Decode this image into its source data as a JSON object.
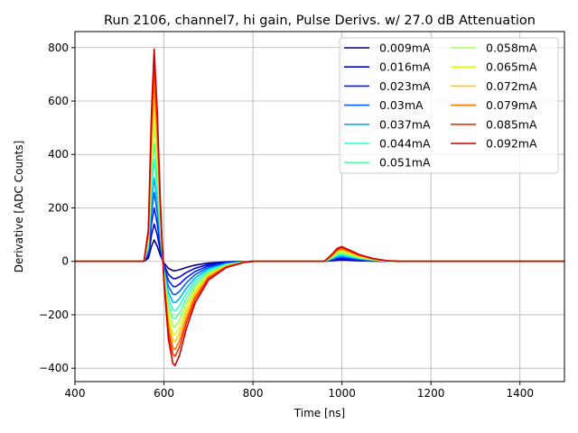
{
  "chart_data": {
    "type": "line",
    "title": "Run 2106, channel7, hi gain, Pulse Derivs. w/ 27.0 dB Attenuation",
    "xlabel": "Time [ns]",
    "ylabel": "Derivative [ADC Counts]",
    "xlim": [
      400,
      1500
    ],
    "ylim": [
      -450,
      860
    ],
    "xticks": [
      400,
      600,
      800,
      1000,
      1200,
      1400
    ],
    "yticks": [
      -400,
      -200,
      0,
      200,
      400,
      600,
      800
    ],
    "grid": true,
    "legend_position": "top-right",
    "legend_columns": 2,
    "pulse_shape": {
      "x": [
        400,
        555,
        565,
        572,
        578,
        585,
        592,
        600,
        610,
        620,
        625,
        635,
        650,
        670,
        700,
        740,
        780,
        800,
        960,
        975,
        990,
        1000,
        1015,
        1040,
        1070,
        1100,
        1130,
        1500
      ],
      "pos": [
        0,
        0,
        0.15,
        0.7,
        1,
        0.7,
        0.3,
        0.05,
        0,
        0,
        0,
        0,
        0,
        0,
        0,
        0,
        0,
        0,
        0,
        0,
        0,
        0,
        0,
        0,
        0,
        0,
        0,
        0
      ],
      "neg": [
        0,
        0,
        0,
        0,
        0,
        0,
        -0.05,
        -0.3,
        -0.75,
        -0.98,
        -1,
        -0.9,
        -0.65,
        -0.4,
        -0.18,
        -0.06,
        -0.01,
        0,
        0,
        0,
        0,
        0,
        0,
        0,
        0,
        0,
        0,
        0
      ],
      "bump": [
        0,
        0,
        0,
        0,
        0,
        0,
        0,
        0,
        0,
        0,
        0,
        0,
        0,
        0,
        0,
        0,
        0,
        0,
        0,
        0.4,
        0.9,
        1,
        0.8,
        0.45,
        0.2,
        0.05,
        0,
        0
      ]
    },
    "series": [
      {
        "name": "0.009mA",
        "color": "#000080",
        "peak": 80,
        "trough": -35,
        "bump": 5
      },
      {
        "name": "0.016mA",
        "color": "#0000d0",
        "peak": 140,
        "trough": -65,
        "bump": 9
      },
      {
        "name": "0.023mA",
        "color": "#0018ff",
        "peak": 200,
        "trough": -95,
        "bump": 13
      },
      {
        "name": "0.03mA",
        "color": "#0060ff",
        "peak": 258,
        "trough": -125,
        "bump": 17
      },
      {
        "name": "0.037mA",
        "color": "#00b0ff",
        "peak": 312,
        "trough": -155,
        "bump": 21
      },
      {
        "name": "0.044mA",
        "color": "#26ffd4",
        "peak": 380,
        "trough": -185,
        "bump": 25
      },
      {
        "name": "0.051mA",
        "color": "#5cff9c",
        "peak": 440,
        "trough": -215,
        "bump": 30
      },
      {
        "name": "0.058mA",
        "color": "#a4ff54",
        "peak": 510,
        "trough": -245,
        "bump": 34
      },
      {
        "name": "0.065mA",
        "color": "#dcff1c",
        "peak": 570,
        "trough": -275,
        "bump": 38
      },
      {
        "name": "0.072mA",
        "color": "#ffc800",
        "peak": 625,
        "trough": -300,
        "bump": 43
      },
      {
        "name": "0.079mA",
        "color": "#ff7800",
        "peak": 680,
        "trough": -330,
        "bump": 47
      },
      {
        "name": "0.085mA",
        "color": "#ff2c00",
        "peak": 740,
        "trough": -355,
        "bump": 51
      },
      {
        "name": "0.092mA",
        "color": "#cc0000",
        "peak": 795,
        "trough": -390,
        "bump": 55
      }
    ]
  }
}
